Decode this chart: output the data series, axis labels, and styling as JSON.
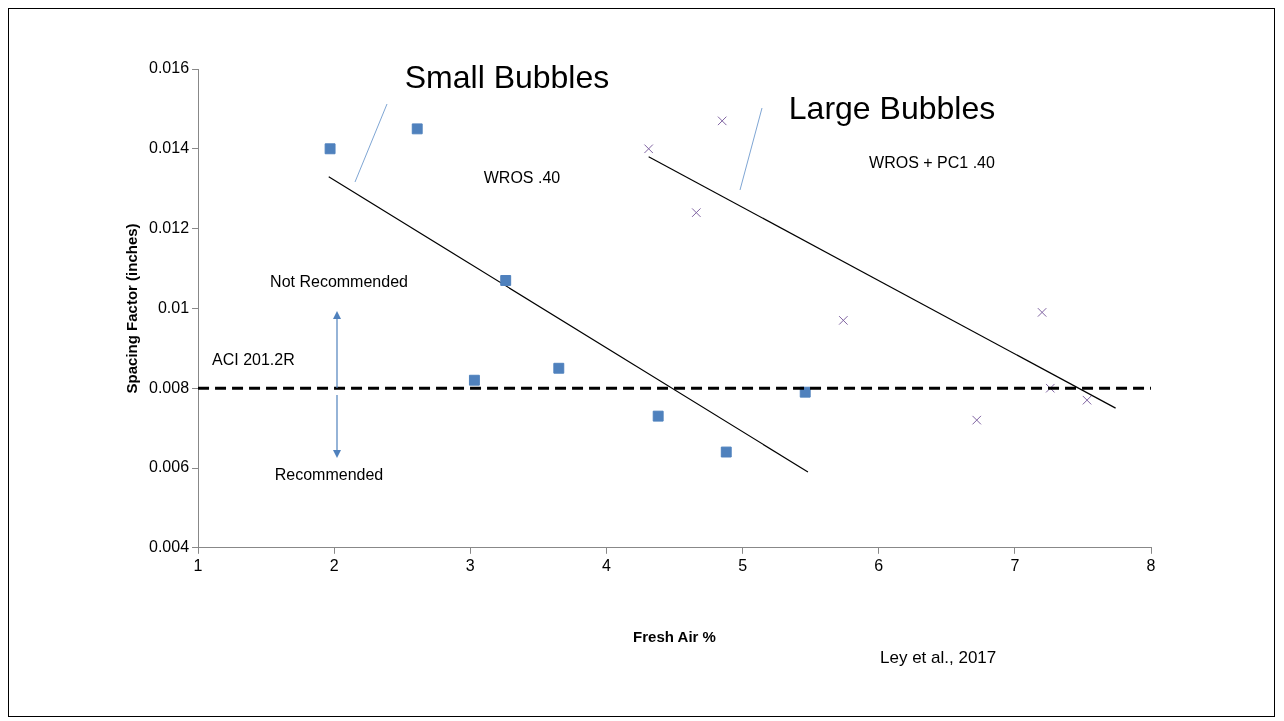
{
  "chart_data": {
    "type": "scatter",
    "xlabel": "Fresh Air %",
    "ylabel": "Spacing Factor (inches)",
    "xlim": [
      1,
      8
    ],
    "xticks": [
      1,
      2,
      3,
      4,
      5,
      6,
      7,
      8
    ],
    "ylim": [
      0.004,
      0.016
    ],
    "yticks": [
      0.004,
      0.006,
      0.008,
      0.01,
      0.012,
      0.014,
      0.016
    ],
    "grid": false,
    "legend": false,
    "series": [
      {
        "type": "scatter",
        "marker": "square",
        "color": "#4f81bd",
        "x": [
          1.97,
          2.61,
          3.26,
          3.03,
          3.65,
          4.38,
          4.88,
          5.46
        ],
        "values": [
          0.014,
          0.0145,
          0.0107,
          0.0082,
          0.0085,
          0.0073,
          0.0064,
          0.0079
        ]
      },
      {
        "type": "scatter",
        "marker": "cross",
        "color": "#8064a2",
        "x": [
          4.31,
          4.85,
          4.66,
          5.74,
          6.72,
          7.2,
          7.26,
          7.53
        ],
        "values": [
          0.014,
          0.0147,
          0.0124,
          0.0097,
          0.0072,
          0.0099,
          0.008,
          0.0077
        ]
      },
      {
        "type": "line",
        "marker": "none",
        "color": "#000000",
        "x": [
          1.96,
          5.48
        ],
        "values": [
          0.0133,
          0.0059
        ]
      },
      {
        "type": "line",
        "marker": "none",
        "color": "#000000",
        "x": [
          4.31,
          7.74
        ],
        "values": [
          0.0138,
          0.0075
        ]
      }
    ],
    "ref_lines": [
      {
        "axis": "y",
        "value": 0.008,
        "label": "ACI 201.2R",
        "color": "#000000",
        "line_style": "dashed"
      }
    ],
    "annotations": [
      "Small Bubbles",
      "Large Bubbles",
      "WROS .40",
      "WROS + PC1 .40",
      "Not Recommended",
      "Recommended",
      "Ley et al., 2017"
    ]
  }
}
